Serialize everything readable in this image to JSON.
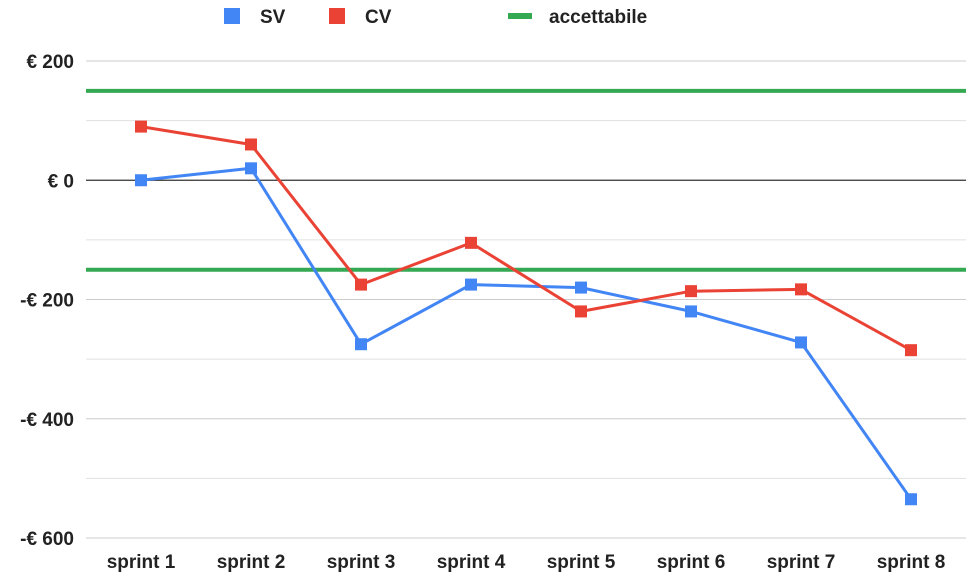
{
  "chart_data": {
    "type": "line",
    "categories": [
      "sprint 1",
      "sprint 2",
      "sprint 3",
      "sprint 4",
      "sprint 5",
      "sprint 6",
      "sprint 7",
      "sprint 8"
    ],
    "series": [
      {
        "name": "SV",
        "color": "#4285f4",
        "values": [
          0,
          20,
          -275,
          -175,
          -180,
          -220,
          -272,
          -535
        ]
      },
      {
        "name": "CV",
        "color": "#ea4335",
        "values": [
          90,
          60,
          -175,
          -105,
          -220,
          -186,
          -183,
          -285
        ]
      }
    ],
    "reference_lines": [
      {
        "name": "accettabile",
        "color": "#34a853",
        "values": [
          150,
          -150
        ]
      }
    ],
    "ylim": [
      -600,
      200
    ],
    "y_ticks": [
      {
        "value": 200,
        "label": "€ 200"
      },
      {
        "value": 0,
        "label": "€ 0"
      },
      {
        "value": -200,
        "label": "-€ 200"
      },
      {
        "value": -400,
        "label": "-€ 400"
      },
      {
        "value": -600,
        "label": "-€ 600"
      }
    ],
    "minor_gridlines": [
      100,
      -100,
      -300,
      -500
    ],
    "title": "",
    "xlabel": "",
    "ylabel": "",
    "grid": true,
    "legend_position": "top"
  }
}
